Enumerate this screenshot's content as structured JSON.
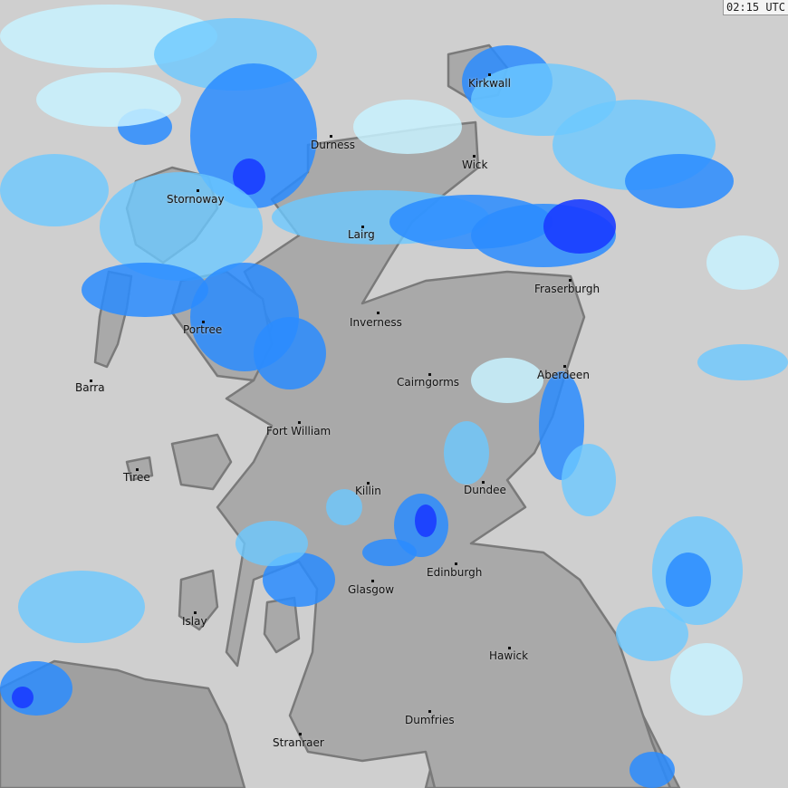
{
  "timestamp": "02:15 UTC",
  "colors": {
    "sea": "#cfcfcf",
    "land": "#a9a9a9",
    "coast": "#7a7a7a",
    "rain_light": "#c8f2ff",
    "rain_mid": "#6cc8ff",
    "rain_heavy": "#2a8cff",
    "rain_intense": "#1a3cff"
  },
  "towns": [
    {
      "name": "Kirkwall"
    },
    {
      "name": "Durness"
    },
    {
      "name": "Wick"
    },
    {
      "name": "Stornoway"
    },
    {
      "name": "Lairg"
    },
    {
      "name": "Fraserburgh"
    },
    {
      "name": "Inverness"
    },
    {
      "name": "Portree"
    },
    {
      "name": "Aberdeen"
    },
    {
      "name": "Barra"
    },
    {
      "name": "Cairngorms"
    },
    {
      "name": "Fort William"
    },
    {
      "name": "Tiree"
    },
    {
      "name": "Killin"
    },
    {
      "name": "Dundee"
    },
    {
      "name": "Edinburgh"
    },
    {
      "name": "Glasgow"
    },
    {
      "name": "Islay"
    },
    {
      "name": "Hawick"
    },
    {
      "name": "Dumfries"
    },
    {
      "name": "Stranraer"
    }
  ]
}
